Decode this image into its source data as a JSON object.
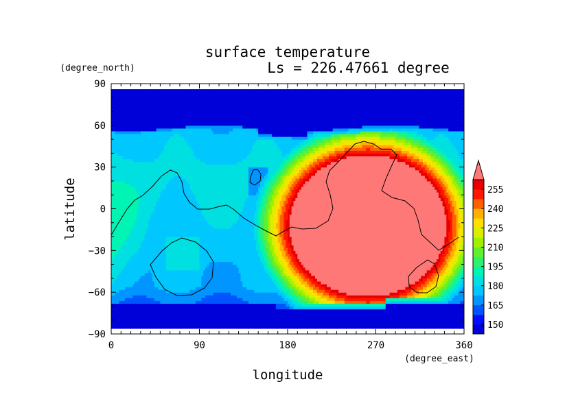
{
  "chart_data": {
    "type": "heatmap",
    "title": "surface temperature",
    "subtitle": "Ls = 226.47661 degree",
    "xlabel": "longitude",
    "ylabel": "latitude",
    "x_units": "(degree_east)",
    "y_units": "(degree_north)",
    "xlim": [
      0,
      360
    ],
    "ylim": [
      -90,
      90
    ],
    "x_ticks": [
      0,
      90,
      180,
      270,
      360
    ],
    "x_tick_labels": [
      "0",
      "90",
      "180",
      "270",
      "360"
    ],
    "y_ticks": [
      90,
      60,
      30,
      0,
      -30,
      -60,
      -90
    ],
    "y_tick_labels": [
      "90",
      "60",
      "30",
      "0",
      "−30",
      "−60",
      "−90"
    ],
    "colorbar": {
      "levels": [
        142.5,
        150,
        157.5,
        165,
        172.5,
        180,
        187.5,
        195,
        202.5,
        210,
        217.5,
        225,
        232.5,
        240,
        247.5,
        255,
        262.5
      ],
      "tick_values": [
        150,
        165,
        180,
        195,
        210,
        225,
        240,
        255
      ],
      "tick_labels": [
        "150",
        "165",
        "180",
        "195",
        "210",
        "225",
        "240",
        "255"
      ],
      "colors": [
        "#0000d8",
        "#0010ff",
        "#0055ff",
        "#0095ff",
        "#00c8ff",
        "#00e0e0",
        "#00f5b4",
        "#30f070",
        "#60f030",
        "#a0f000",
        "#d8f000",
        "#ffe000",
        "#ffb000",
        "#ff6000",
        "#ff1800",
        "#e80000"
      ],
      "over_color": "#ff7878",
      "extend": "max"
    },
    "regions": [
      {
        "name": "north polar cap",
        "lon_range": [
          0,
          360
        ],
        "lat_range": [
          58,
          85
        ],
        "value": 145
      },
      {
        "name": "south polar cap",
        "lon_range": [
          0,
          360
        ],
        "lat_range": [
          -85,
          -68
        ],
        "value": 145
      },
      {
        "name": "warm southern plateau",
        "lon_range": [
          175,
          350
        ],
        "lat_range": [
          -70,
          45
        ],
        "value": 265
      }
    ],
    "grid": false,
    "legend": "right"
  }
}
